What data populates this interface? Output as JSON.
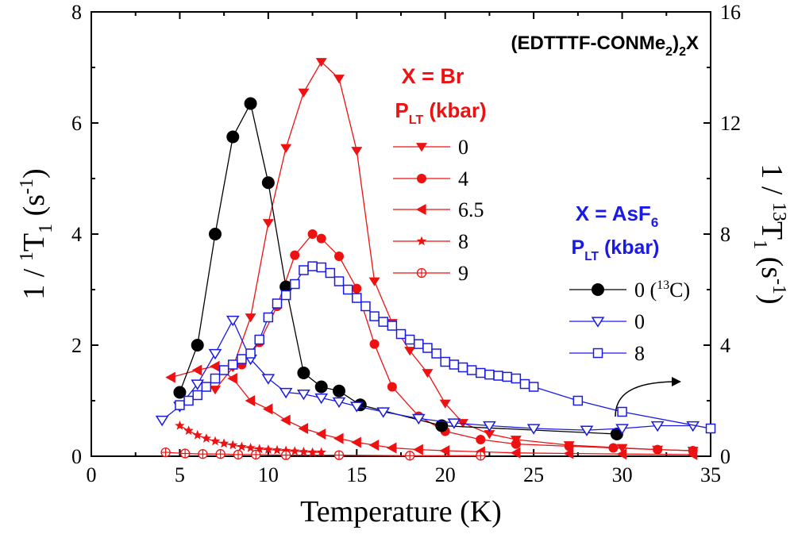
{
  "chart_data": {
    "type": "line",
    "xlabel": "Temperature (K)",
    "ylabel_left": "1 / 1T1 (s-1)",
    "ylabel_right": "1 / 13T1 (s-1)",
    "xlim": [
      0,
      35
    ],
    "ylim_left": [
      0,
      8
    ],
    "ylim_right": [
      0,
      16
    ],
    "x_ticks": [
      "0",
      "5",
      "10",
      "15",
      "20",
      "25",
      "30",
      "35"
    ],
    "y_ticks_left": [
      "0",
      "2",
      "4",
      "6",
      "8"
    ],
    "y_ticks_right": [
      "0",
      "4",
      "8",
      "12",
      "16"
    ],
    "compound": "(EDTTTF-CONMe2)2X",
    "groups": {
      "br": {
        "label": "X = Br",
        "pressure_label": "PLT (kbar)",
        "color": "#ee1111"
      },
      "asf6": {
        "label": "X = AsF6",
        "pressure_label": "PLT (kbar)",
        "color": "#1a1ae6"
      }
    },
    "series": [
      {
        "name": "0",
        "group": "br",
        "marker": "triangle-down",
        "color": "#ee1111",
        "axis": "left",
        "points": [
          [
            7.0,
            1.2
          ],
          [
            8.0,
            1.6
          ],
          [
            9.0,
            2.5
          ],
          [
            10.0,
            4.2
          ],
          [
            11.0,
            5.55
          ],
          [
            12.0,
            6.55
          ],
          [
            13.0,
            7.1
          ],
          [
            14.0,
            6.8
          ],
          [
            15.0,
            5.5
          ],
          [
            16.0,
            3.15
          ],
          [
            17.0,
            2.4
          ],
          [
            18.0,
            1.9
          ],
          [
            19.0,
            1.5
          ],
          [
            20.0,
            0.95
          ],
          [
            21.0,
            0.6
          ],
          [
            22.5,
            0.4
          ],
          [
            24.0,
            0.3
          ],
          [
            27.0,
            0.2
          ],
          [
            30.0,
            0.15
          ],
          [
            32.0,
            0.12
          ],
          [
            34.0,
            0.1
          ]
        ]
      },
      {
        "name": "4",
        "group": "br",
        "marker": "circle",
        "color": "#ee1111",
        "axis": "left",
        "points": [
          [
            8.5,
            1.65
          ],
          [
            9.5,
            2.05
          ],
          [
            10.5,
            2.7
          ],
          [
            11.5,
            3.62
          ],
          [
            12.5,
            4.0
          ],
          [
            13.0,
            3.92
          ],
          [
            14.0,
            3.6
          ],
          [
            15.0,
            3.02
          ],
          [
            16.0,
            2.02
          ],
          [
            17.0,
            1.25
          ],
          [
            18.5,
            0.72
          ],
          [
            20.0,
            0.45
          ],
          [
            22.0,
            0.3
          ],
          [
            24.0,
            0.22
          ],
          [
            27.0,
            0.18
          ],
          [
            29.5,
            0.15
          ],
          [
            32.0,
            0.12
          ],
          [
            34.0,
            0.1
          ]
        ]
      },
      {
        "name": "6.5",
        "group": "br",
        "marker": "triangle-left",
        "color": "#ee1111",
        "axis": "left",
        "points": [
          [
            4.5,
            1.42
          ],
          [
            6.0,
            1.55
          ],
          [
            7.0,
            1.62
          ],
          [
            8.0,
            1.4
          ],
          [
            9.0,
            1.0
          ],
          [
            10.0,
            0.85
          ],
          [
            11.0,
            0.65
          ],
          [
            12.0,
            0.5
          ],
          [
            13.0,
            0.4
          ],
          [
            14.0,
            0.32
          ],
          [
            15.0,
            0.25
          ],
          [
            16.0,
            0.2
          ],
          [
            17.0,
            0.15
          ],
          [
            18.5,
            0.12
          ],
          [
            20.0,
            0.1
          ],
          [
            22.0,
            0.08
          ],
          [
            24.0,
            0.06
          ],
          [
            27.0,
            0.05
          ],
          [
            30.0,
            0.04
          ],
          [
            34.0,
            0.03
          ]
        ]
      },
      {
        "name": "8",
        "group": "br",
        "marker": "star",
        "color": "#ee1111",
        "axis": "left",
        "points": [
          [
            5.0,
            0.55
          ],
          [
            5.5,
            0.46
          ],
          [
            6.0,
            0.38
          ],
          [
            6.5,
            0.32
          ],
          [
            7.0,
            0.27
          ],
          [
            7.5,
            0.23
          ],
          [
            8.0,
            0.2
          ],
          [
            8.5,
            0.17
          ],
          [
            9.0,
            0.15
          ],
          [
            9.5,
            0.13
          ],
          [
            10.0,
            0.12
          ],
          [
            10.5,
            0.11
          ],
          [
            11.0,
            0.1
          ],
          [
            11.5,
            0.09
          ],
          [
            12.0,
            0.08
          ],
          [
            12.5,
            0.07
          ],
          [
            13.0,
            0.07
          ]
        ]
      },
      {
        "name": "9",
        "group": "br",
        "marker": "circle-plus",
        "color": "#ee1111",
        "axis": "left",
        "points": [
          [
            4.2,
            0.07
          ],
          [
            5.3,
            0.05
          ],
          [
            6.3,
            0.04
          ],
          [
            7.3,
            0.04
          ],
          [
            8.3,
            0.03
          ],
          [
            9.3,
            0.03
          ],
          [
            11.0,
            0.02
          ],
          [
            14.0,
            0.02
          ],
          [
            18.0,
            0.01
          ],
          [
            22.0,
            0.01
          ]
        ]
      },
      {
        "name": "0 (13C)",
        "group": "asf6",
        "marker": "circle-filled",
        "color": "#000000",
        "axis": "right",
        "points": [
          [
            5.0,
            2.3
          ],
          [
            6.0,
            4.0
          ],
          [
            7.0,
            8.0
          ],
          [
            8.0,
            11.5
          ],
          [
            9.0,
            12.7
          ],
          [
            10.0,
            9.85
          ],
          [
            11.0,
            6.1
          ],
          [
            12.0,
            3.0
          ],
          [
            13.0,
            2.5
          ],
          [
            14.0,
            2.35
          ],
          [
            15.2,
            1.85
          ],
          [
            19.8,
            1.1
          ],
          [
            29.7,
            0.8
          ]
        ]
      },
      {
        "name": "0",
        "group": "asf6",
        "marker": "triangle-down-open",
        "color": "#1a1ae6",
        "axis": "left",
        "points": [
          [
            4.0,
            0.65
          ],
          [
            5.0,
            0.9
          ],
          [
            6.0,
            1.3
          ],
          [
            7.0,
            1.85
          ],
          [
            8.0,
            2.45
          ],
          [
            9.0,
            1.75
          ],
          [
            10.0,
            1.4
          ],
          [
            11.0,
            1.15
          ],
          [
            12.0,
            1.12
          ],
          [
            13.0,
            1.05
          ],
          [
            14.0,
            0.98
          ],
          [
            15.0,
            0.9
          ],
          [
            16.5,
            0.8
          ],
          [
            18.5,
            0.68
          ],
          [
            20.5,
            0.6
          ],
          [
            22.5,
            0.55
          ],
          [
            25.0,
            0.5
          ],
          [
            28.0,
            0.47
          ],
          [
            30.0,
            0.5
          ],
          [
            32.0,
            0.55
          ],
          [
            34.0,
            0.55
          ]
        ]
      },
      {
        "name": "8",
        "group": "asf6",
        "marker": "square-open",
        "color": "#1a1ae6",
        "axis": "left",
        "points": [
          [
            5.0,
            0.92
          ],
          [
            5.5,
            1.0
          ],
          [
            6.0,
            1.1
          ],
          [
            6.5,
            1.25
          ],
          [
            7.0,
            1.4
          ],
          [
            7.5,
            1.55
          ],
          [
            8.0,
            1.65
          ],
          [
            8.5,
            1.75
          ],
          [
            9.0,
            1.85
          ],
          [
            9.5,
            2.1
          ],
          [
            10.0,
            2.5
          ],
          [
            10.5,
            2.75
          ],
          [
            11.0,
            2.9
          ],
          [
            11.5,
            3.1
          ],
          [
            12.0,
            3.35
          ],
          [
            12.5,
            3.42
          ],
          [
            13.0,
            3.4
          ],
          [
            13.5,
            3.3
          ],
          [
            14.0,
            3.15
          ],
          [
            14.5,
            3.0
          ],
          [
            15.0,
            2.85
          ],
          [
            15.5,
            2.7
          ],
          [
            16.0,
            2.52
          ],
          [
            16.5,
            2.42
          ],
          [
            17.0,
            2.35
          ],
          [
            17.5,
            2.2
          ],
          [
            18.0,
            2.1
          ],
          [
            18.5,
            2.02
          ],
          [
            19.0,
            1.95
          ],
          [
            19.5,
            1.85
          ],
          [
            20.0,
            1.7
          ],
          [
            20.5,
            1.65
          ],
          [
            21.0,
            1.6
          ],
          [
            21.5,
            1.55
          ],
          [
            22.0,
            1.5
          ],
          [
            22.5,
            1.47
          ],
          [
            23.0,
            1.45
          ],
          [
            23.5,
            1.43
          ],
          [
            24.0,
            1.4
          ],
          [
            24.5,
            1.3
          ],
          [
            25.0,
            1.25
          ],
          [
            27.5,
            1.0
          ],
          [
            30.0,
            0.8
          ],
          [
            35.0,
            0.5
          ]
        ]
      }
    ],
    "legend_br": [
      {
        "series_index": 0,
        "label": "0"
      },
      {
        "series_index": 1,
        "label": "4"
      },
      {
        "series_index": 2,
        "label": "6.5"
      },
      {
        "series_index": 3,
        "label": "8"
      },
      {
        "series_index": 4,
        "label": "9"
      }
    ],
    "legend_asf6": [
      {
        "series_index": 5,
        "label": "0 (13C)"
      },
      {
        "series_index": 6,
        "label": "0"
      },
      {
        "series_index": 7,
        "label": "8"
      }
    ]
  }
}
